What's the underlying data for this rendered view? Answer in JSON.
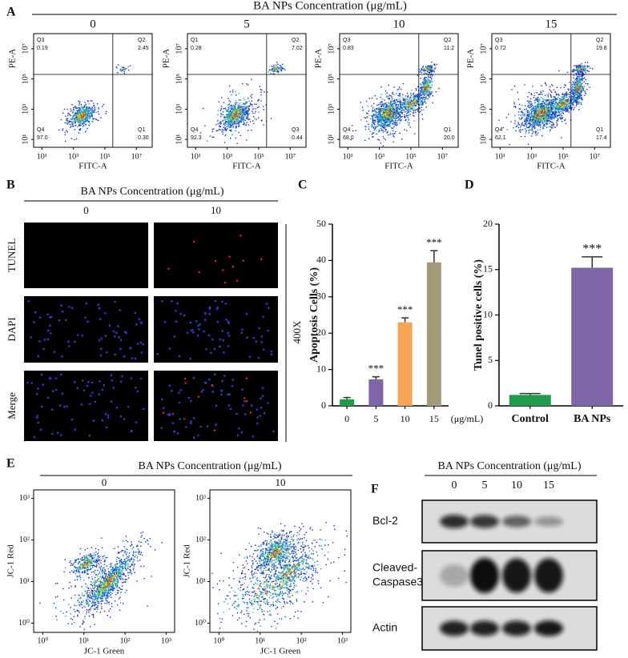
{
  "figure": {
    "panel_a": {
      "letter": "A",
      "title": "BA NPs Concentration (μg/mL)",
      "x_label": "FITC-A",
      "y_label": "PE-A",
      "log_scale": true,
      "xlim": [
        3,
        100000000
      ],
      "ylim": [
        3,
        100000000
      ],
      "ticks": [
        {
          "value": 10,
          "label": "10¹"
        },
        {
          "value": 1000,
          "label": "10³"
        },
        {
          "value": 100000,
          "label": "10⁵"
        },
        {
          "value": 10000000,
          "label": "10⁷"
        }
      ],
      "plots": [
        {
          "concentration": "0",
          "quadrants": [
            {
              "name": "Q3",
              "value": "0.19"
            },
            {
              "name": "Q2",
              "value": "2.45"
            },
            {
              "name": "Q4",
              "value": "97.0"
            },
            {
              "name": "Q1",
              "value": "0.30"
            }
          ]
        },
        {
          "concentration": "5",
          "quadrants": [
            {
              "name": "Q1",
              "value": "0.28"
            },
            {
              "name": "Q2",
              "value": "7.02"
            },
            {
              "name": "Q4",
              "value": "92.3"
            },
            {
              "name": "Q3",
              "value": "0.44"
            }
          ]
        },
        {
          "concentration": "10",
          "quadrants": [
            {
              "name": "Q3",
              "value": "0.83"
            },
            {
              "name": "Q2",
              "value": "11.2"
            },
            {
              "name": "Q4",
              "value": "68.0"
            },
            {
              "name": "Q1",
              "value": "20.0"
            }
          ]
        },
        {
          "concentration": "15",
          "quadrants": [
            {
              "name": "Q3",
              "value": "0.72"
            },
            {
              "name": "Q2",
              "value": "19.8"
            },
            {
              "name": "Q4",
              "value": "62.1"
            },
            {
              "name": "Q1",
              "value": "17.4"
            }
          ]
        }
      ]
    },
    "panel_b": {
      "letter": "B",
      "title": "BA NPs  Concentration (μg/mL)",
      "columns": [
        "0",
        "10"
      ],
      "rows": [
        "TUNEL",
        "DAPI",
        "Merge"
      ],
      "magnification": "400X"
    },
    "panel_e": {
      "letter": "E",
      "title": "BA NPs Concentration (μg/mL)",
      "x_label": "JC-1 Green",
      "y_label": "JC-1 Red",
      "log_scale": true,
      "xlim": [
        0.6,
        1600
      ],
      "ylim": [
        0.6,
        1600
      ],
      "ticks": [
        {
          "value": 1,
          "label": "10⁰"
        },
        {
          "value": 10,
          "label": "10¹"
        },
        {
          "value": 100,
          "label": "10²"
        },
        {
          "value": 1000,
          "label": "10³"
        }
      ],
      "plots": [
        "0",
        "10"
      ]
    },
    "panel_f": {
      "letter": "F",
      "title": "BA NPs Concentration (μg/mL)",
      "lanes": [
        "0",
        "5",
        "10",
        "15"
      ],
      "rows": [
        [
          "Bcl-2"
        ],
        [
          "Cleaved-",
          "Caspase3"
        ],
        [
          "Actin"
        ]
      ]
    }
  },
  "chart_data": [
    {
      "type": "bar",
      "panel_label": "C",
      "ylabel": "Apoptosis Cells (%)",
      "xlabel": "(μg/mL)",
      "categories": [
        "0",
        "5",
        "10",
        "15"
      ],
      "values": [
        1.8,
        7.3,
        23,
        39.5
      ],
      "errors": [
        0.5,
        0.7,
        1.2,
        3.2
      ],
      "annotations": [
        null,
        "***",
        "***",
        "***"
      ],
      "colors": [
        "#1e9c4b",
        "#8064a8",
        "#f6a653",
        "#a39b78"
      ],
      "ylim": [
        0,
        50
      ],
      "yticks": [
        0,
        10,
        20,
        30,
        40,
        50
      ]
    },
    {
      "type": "bar",
      "panel_label": "D",
      "ylabel": "Tunel positive cells (%)",
      "categories": [
        "Control",
        "BA NPs"
      ],
      "values": [
        1.2,
        15.2
      ],
      "errors": [
        0.15,
        1.2
      ],
      "annotations": [
        null,
        "***"
      ],
      "colors": [
        "#1e9c4b",
        "#8064a8"
      ],
      "ylim": [
        0,
        20
      ],
      "yticks": [
        0,
        5,
        10,
        15,
        20
      ]
    }
  ]
}
